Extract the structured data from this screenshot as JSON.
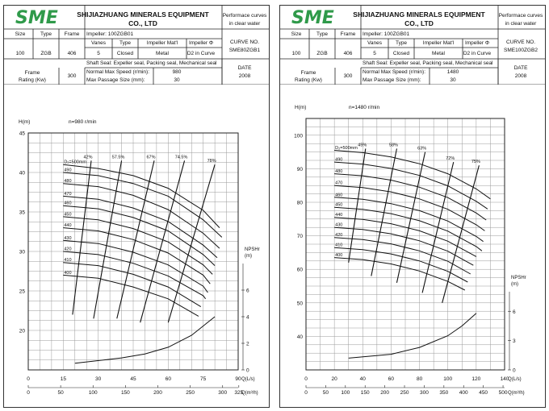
{
  "brand": {
    "logo_text": "SME",
    "logo_color": "#2f9a4a"
  },
  "sheets": [
    {
      "company_line1": "SHIJIAZHUANG MINERALS EQUIPMENT",
      "company_line2": "CO., LTD",
      "perf_line1": "Performace curves",
      "perf_line2": "in clear water",
      "size_label": "Size",
      "type_label": "Type",
      "frame_label": "Frame",
      "impeller_text": "Impeller: 100ZGB01",
      "vanes_label": "Vanes",
      "imp_type_label": "Type",
      "imp_mat_label": "Impeller Mat'l",
      "imp_phi_label": "Impeller Φ",
      "size": "100",
      "type": "ZGB",
      "frame": "406",
      "vanes": "5",
      "imp_type": "Closed",
      "imp_mat": "Metal",
      "imp_phi": "D2 in Curve",
      "curve_no_label": "CURVE NO.",
      "curve_no": "SME80ZGB1",
      "shaft_seal": "Shaft Seal: Expeller seal, Packing seal, Mechanical seal",
      "frame_rating_l1": "Frame",
      "frame_rating_l2": "Rating (Kw)",
      "frame_rating": "300",
      "normal_speed_label": "Normal Max Speed (r/min):",
      "normal_speed": "980",
      "max_passage_label": "Max Passage Size (mm):",
      "max_passage": "30",
      "date_label": "DATE",
      "date": "2008"
    },
    {
      "company_line1": "SHIJIAZHUANG MINERALS EQUIPMENT",
      "company_line2": "CO., LTD",
      "perf_line1": "Performace curves",
      "perf_line2": "in clear water",
      "size_label": "Size",
      "type_label": "Type",
      "frame_label": "Frame",
      "impeller_text": "Impeller: 100ZGB01",
      "vanes_label": "Vanes",
      "imp_type_label": "Type",
      "imp_mat_label": "Impeller Mat'l",
      "imp_phi_label": "Impeller Φ",
      "size": "100",
      "type": "ZGB",
      "frame": "406",
      "vanes": "5",
      "imp_type": "Closed",
      "imp_mat": "Metal",
      "imp_phi": "D2 in Curve",
      "curve_no_label": "CURVE NO.",
      "curve_no": "SME100ZGB2",
      "shaft_seal": "Shaft Seal: Expeller seal, Packing seal, Mechanical seal",
      "frame_rating_l1": "Frame",
      "frame_rating_l2": "Rating (Kw)",
      "frame_rating": "300",
      "normal_speed_label": "Normal Max Speed (r/min):",
      "normal_speed": "1480",
      "max_passage_label": "Max Passage Size (mm):",
      "max_passage": "30",
      "date_label": "DATE",
      "date": "2008"
    }
  ],
  "chart_data": [
    {
      "type": "line",
      "ylabel": "H(m)",
      "speed_label": "n=980 r/min",
      "xlabel": "Q(L/s)",
      "x2label": "Q(m³/h)",
      "npsh_label": [
        "NPSHr",
        "(m)"
      ],
      "xlim": [
        0,
        90
      ],
      "ylim": [
        15,
        45
      ],
      "npsh_lim": [
        0,
        8
      ],
      "x_ticks": [
        0,
        15,
        30,
        45,
        60,
        75,
        90
      ],
      "x2_ticks": [
        0,
        50,
        100,
        150,
        200,
        250,
        300,
        325
      ],
      "y_ticks": [
        20,
        25,
        30,
        35,
        40,
        45
      ],
      "npsh_ticks": [
        0,
        2,
        4,
        6
      ],
      "diameter_labels": [
        "D₂=500mm",
        "490",
        "480",
        "470",
        "460",
        "450",
        "440",
        "430",
        "420",
        "410",
        "400"
      ],
      "series": [
        {
          "name": "D₂=500mm",
          "x": [
            15,
            30,
            45,
            60,
            75,
            82
          ],
          "y": [
            41.0,
            40.5,
            39.6,
            38.0,
            35.2,
            33.0
          ]
        },
        {
          "name": "490",
          "x": [
            15,
            30,
            45,
            60,
            75,
            83
          ],
          "y": [
            40.0,
            39.6,
            38.6,
            37.0,
            34.0,
            31.8
          ]
        },
        {
          "name": "480",
          "x": [
            15,
            30,
            45,
            60,
            75,
            82
          ],
          "y": [
            38.6,
            38.2,
            37.1,
            35.3,
            32.3,
            30.4
          ]
        },
        {
          "name": "470",
          "x": [
            15,
            30,
            45,
            60,
            75,
            81
          ],
          "y": [
            37.0,
            36.6,
            35.5,
            33.8,
            30.8,
            29.2
          ]
        },
        {
          "name": "460",
          "x": [
            15,
            30,
            45,
            60,
            75,
            80
          ],
          "y": [
            35.8,
            35.4,
            34.3,
            32.6,
            29.6,
            28.2
          ]
        },
        {
          "name": "450",
          "x": [
            15,
            30,
            45,
            60,
            75,
            79
          ],
          "y": [
            34.4,
            34.0,
            32.9,
            31.2,
            28.3,
            27.1
          ]
        },
        {
          "name": "440",
          "x": [
            15,
            30,
            45,
            60,
            75,
            78
          ],
          "y": [
            33.0,
            32.6,
            31.5,
            29.8,
            27.0,
            25.9
          ]
        },
        {
          "name": "430",
          "x": [
            15,
            30,
            45,
            60,
            75,
            77
          ],
          "y": [
            31.4,
            31.0,
            29.9,
            28.3,
            25.6,
            24.8
          ]
        },
        {
          "name": "420",
          "x": [
            15,
            30,
            45,
            60,
            75,
            76
          ],
          "y": [
            30.0,
            29.6,
            28.5,
            26.9,
            24.4,
            24.0
          ]
        },
        {
          "name": "410",
          "x": [
            15,
            30,
            45,
            60,
            74
          ],
          "y": [
            28.6,
            28.2,
            27.1,
            25.5,
            23.0
          ]
        },
        {
          "name": "400",
          "x": [
            15,
            30,
            45,
            60,
            73
          ],
          "y": [
            27.0,
            26.6,
            25.5,
            24.0,
            21.8
          ]
        }
      ],
      "efficiency_labels": [
        "42%",
        "57.5%",
        "67%",
        "74.5%",
        "78%"
      ],
      "efficiency": [
        {
          "name": "42%",
          "x": [
            19,
            27
          ],
          "y": [
            22,
            41.5
          ]
        },
        {
          "name": "57.5%",
          "x": [
            28,
            40
          ],
          "y": [
            21.5,
            41.5
          ]
        },
        {
          "name": "67%",
          "x": [
            38,
            54
          ],
          "y": [
            21.5,
            41.5
          ]
        },
        {
          "name": "74.5%",
          "x": [
            48,
            67
          ],
          "y": [
            21.0,
            41.5
          ]
        },
        {
          "name": "78%",
          "x": [
            60,
            80
          ],
          "y": [
            21.0,
            41.0
          ]
        }
      ],
      "npsh": {
        "x": [
          20,
          40,
          50,
          60,
          70,
          80
        ],
        "y": [
          0.5,
          0.9,
          1.2,
          1.7,
          2.6,
          4.0
        ]
      }
    },
    {
      "type": "line",
      "ylabel": "H(m)",
      "speed_label": "n=1480 r/min",
      "xlabel": "Q(L/s)",
      "x2label": "Q(m³/h)",
      "npsh_label": [
        "NPSHr",
        "(m)"
      ],
      "xlim": [
        0,
        140
      ],
      "ylim": [
        30,
        105
      ],
      "npsh_lim": [
        0,
        8
      ],
      "x_ticks": [
        0,
        20,
        40,
        60,
        80,
        100,
        120,
        140
      ],
      "x2_ticks": [
        0,
        50,
        100,
        150,
        200,
        250,
        300,
        350,
        400,
        450,
        500
      ],
      "y_ticks": [
        40,
        50,
        60,
        70,
        80,
        90,
        100
      ],
      "npsh_ticks": [
        0,
        3,
        6
      ],
      "diameter_labels": [
        "D₂=500mm",
        "490",
        "480",
        "470",
        "460",
        "450",
        "440",
        "430",
        "420",
        "410",
        "400"
      ],
      "series": [
        {
          "name": "D₂=500mm",
          "x": [
            20,
            40,
            60,
            80,
            100,
            120,
            130
          ],
          "y": [
            95.5,
            94.8,
            93.5,
            91.5,
            88.5,
            84.0,
            81.0
          ]
        },
        {
          "name": "490",
          "x": [
            20,
            40,
            60,
            80,
            100,
            120,
            128
          ],
          "y": [
            92.0,
            91.4,
            90.1,
            88.0,
            84.9,
            80.3,
            78.0
          ]
        },
        {
          "name": "480",
          "x": [
            20,
            40,
            60,
            80,
            100,
            120,
            127
          ],
          "y": [
            88.5,
            87.9,
            86.6,
            84.5,
            81.4,
            76.8,
            74.7
          ]
        },
        {
          "name": "470",
          "x": [
            20,
            40,
            60,
            80,
            100,
            120,
            126
          ],
          "y": [
            85.0,
            84.4,
            83.1,
            81.0,
            77.9,
            73.3,
            71.5
          ]
        },
        {
          "name": "460",
          "x": [
            20,
            40,
            60,
            80,
            100,
            120,
            125
          ],
          "y": [
            81.5,
            80.9,
            79.6,
            77.5,
            74.4,
            69.8,
            68.3
          ]
        },
        {
          "name": "450",
          "x": [
            20,
            40,
            60,
            80,
            100,
            120,
            124
          ],
          "y": [
            78.5,
            77.9,
            76.6,
            74.5,
            71.4,
            66.8,
            65.5
          ]
        },
        {
          "name": "440",
          "x": [
            20,
            40,
            60,
            80,
            100,
            120
          ],
          "y": [
            75.5,
            74.9,
            73.6,
            71.5,
            68.4,
            63.8
          ]
        },
        {
          "name": "430",
          "x": [
            20,
            40,
            60,
            80,
            100,
            118
          ],
          "y": [
            72.5,
            71.9,
            70.6,
            68.5,
            65.4,
            61.2
          ]
        },
        {
          "name": "420",
          "x": [
            20,
            40,
            60,
            80,
            100,
            116
          ],
          "y": [
            69.5,
            68.9,
            67.6,
            65.5,
            62.4,
            58.6
          ]
        },
        {
          "name": "410",
          "x": [
            20,
            40,
            60,
            80,
            100,
            114
          ],
          "y": [
            66.5,
            65.9,
            64.6,
            62.5,
            59.4,
            56.2
          ]
        },
        {
          "name": "400",
          "x": [
            20,
            40,
            60,
            80,
            100,
            112
          ],
          "y": [
            63.5,
            62.9,
            61.6,
            59.5,
            56.4,
            53.8
          ]
        }
      ],
      "efficiency_labels": [
        "45%",
        "58%",
        "63%",
        "72%",
        "75%"
      ],
      "efficiency": [
        {
          "name": "45%",
          "x": [
            30,
            42
          ],
          "y": [
            62,
            96
          ]
        },
        {
          "name": "58%",
          "x": [
            46,
            64
          ],
          "y": [
            58,
            96
          ]
        },
        {
          "name": "63%",
          "x": [
            64,
            84
          ],
          "y": [
            56,
            95
          ]
        },
        {
          "name": "72%",
          "x": [
            82,
            104
          ],
          "y": [
            53,
            92
          ]
        },
        {
          "name": "75%",
          "x": [
            96,
            122
          ],
          "y": [
            50,
            91
          ]
        }
      ],
      "npsh": {
        "x": [
          30,
          60,
          80,
          100,
          110,
          120
        ],
        "y": [
          1.2,
          1.6,
          2.3,
          3.5,
          4.5,
          5.8
        ]
      }
    }
  ]
}
